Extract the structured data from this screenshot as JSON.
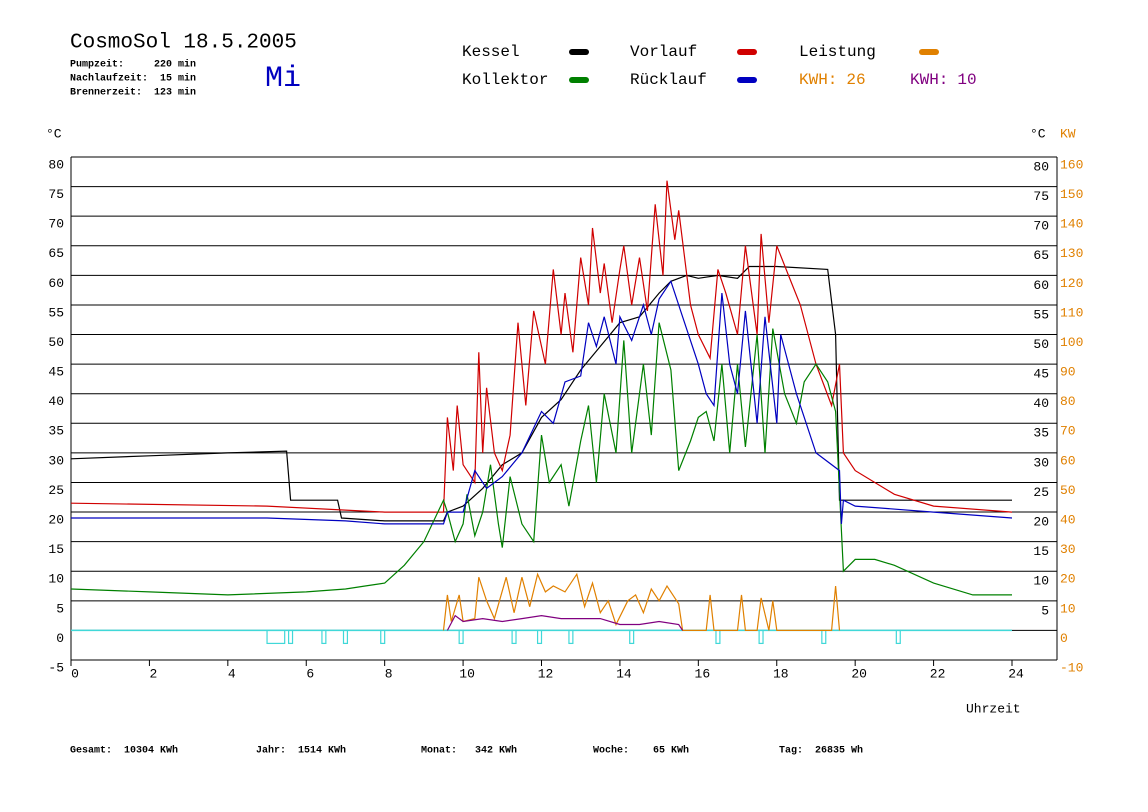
{
  "chart_data": {
    "type": "line",
    "title": "CosmoSol 18.5.2005",
    "info": [
      "Pumpzeit:     220 min",
      "Nachlaufzeit:  15 min",
      "Brennerzeit:  123 min"
    ],
    "day": "Mi",
    "y_label": "°C",
    "y2_label": "KW",
    "y_right_label": "°C",
    "x_label": "Uhrzeit",
    "xlim": [
      0,
      24
    ],
    "xticks": [
      0,
      2,
      4,
      6,
      8,
      10,
      12,
      14,
      16,
      18,
      20,
      22,
      24
    ],
    "ylim": [
      -5,
      80
    ],
    "yticks": [
      -5,
      0,
      5,
      10,
      15,
      20,
      25,
      30,
      35,
      40,
      45,
      50,
      55,
      60,
      65,
      70,
      75,
      80
    ],
    "yticks_right": [
      5,
      10,
      15,
      20,
      25,
      30,
      35,
      40,
      45,
      50,
      55,
      60,
      65,
      70,
      75,
      80
    ],
    "y2lim": [
      -10,
      160
    ],
    "y2ticks": [
      -10,
      0,
      10,
      20,
      30,
      40,
      50,
      60,
      70,
      80,
      90,
      100,
      110,
      120,
      130,
      140,
      150,
      160
    ],
    "y2color": "#e08000",
    "grid": true,
    "series": [
      {
        "name": "Kessel",
        "color": "#000000",
        "x": [
          0,
          2,
          4,
          5.5,
          5.6,
          6.8,
          6.9,
          8,
          9.5,
          9.6,
          10,
          10.5,
          11,
          11.5,
          12,
          12.5,
          13,
          13.5,
          14,
          14.5,
          15,
          15.3,
          15.7,
          16,
          16.5,
          17,
          17.3,
          18,
          19.3,
          19.5,
          19.6,
          24
        ],
        "values": [
          29,
          29.5,
          30,
          30.3,
          22,
          22,
          19,
          18.5,
          18.5,
          20,
          21,
          24,
          28,
          30,
          36,
          39,
          44,
          48,
          52,
          53,
          57,
          59,
          60,
          59.5,
          60,
          59.5,
          61.5,
          61.5,
          61,
          50,
          22,
          22
        ]
      },
      {
        "name": "Vorlauf",
        "color": "#d00000",
        "x": [
          0,
          5,
          8,
          9.5,
          9.6,
          9.75,
          9.85,
          10,
          10.3,
          10.4,
          10.5,
          10.6,
          10.8,
          11,
          11.2,
          11.4,
          11.6,
          11.8,
          12,
          12.1,
          12.3,
          12.5,
          12.6,
          12.8,
          13,
          13.2,
          13.3,
          13.5,
          13.6,
          13.8,
          14,
          14.1,
          14.3,
          14.5,
          14.7,
          14.9,
          15.1,
          15.2,
          15.4,
          15.5,
          15.8,
          16,
          16.3,
          16.5,
          16.7,
          17,
          17.2,
          17.5,
          17.6,
          17.8,
          18,
          18.3,
          18.6,
          19,
          19.4,
          19.6,
          19.7,
          20,
          21,
          22,
          24
        ],
        "values": [
          21.5,
          21,
          20,
          20,
          36,
          27,
          38,
          28,
          25,
          47,
          30,
          41,
          30,
          27,
          33,
          52,
          38,
          54,
          48,
          45,
          61,
          50,
          57,
          47,
          63,
          55,
          68,
          57,
          62,
          52,
          61,
          65,
          55,
          63,
          54,
          72,
          60,
          76,
          66,
          71,
          55,
          50,
          46,
          61,
          57,
          50,
          65,
          50,
          67,
          52,
          65,
          60,
          55,
          45,
          38,
          45,
          30,
          27,
          23,
          21,
          20
        ]
      },
      {
        "name": "Leistung",
        "color": "#e08000",
        "axis": "y2",
        "x": [
          9.5,
          9.6,
          9.7,
          9.9,
          10,
          10.3,
          10.4,
          10.6,
          10.8,
          11.1,
          11.3,
          11.5,
          11.7,
          11.9,
          12.1,
          12.3,
          12.6,
          12.9,
          13.1,
          13.3,
          13.5,
          13.7,
          13.9,
          14.2,
          14.4,
          14.6,
          14.8,
          15,
          15.2,
          15.5,
          15.6,
          16.2,
          16.3,
          16.4,
          17,
          17.1,
          17.2,
          17.5,
          17.6,
          17.8,
          17.9,
          18,
          19.4,
          19.5,
          19.6
        ],
        "values": [
          0,
          12,
          3,
          12,
          3,
          4,
          18,
          10,
          4,
          18,
          6,
          18,
          8,
          19,
          13,
          15,
          13,
          19,
          8,
          16,
          6,
          10,
          2,
          10,
          12,
          6,
          14,
          10,
          15,
          9,
          0,
          0,
          12,
          0,
          0,
          12,
          0,
          0,
          11,
          0,
          10,
          0,
          0,
          15,
          0
        ]
      },
      {
        "name": "Kollektor",
        "color": "#008000",
        "x": [
          0,
          2,
          4,
          6,
          7,
          7.5,
          8,
          8.5,
          9,
          9.5,
          9.6,
          9.8,
          10,
          10.1,
          10.3,
          10.5,
          10.7,
          10.9,
          11,
          11.2,
          11.5,
          11.8,
          12,
          12.2,
          12.5,
          12.7,
          13,
          13.2,
          13.4,
          13.6,
          13.9,
          14.1,
          14.3,
          14.6,
          14.8,
          15,
          15.3,
          15.5,
          15.8,
          16,
          16.2,
          16.4,
          16.6,
          16.8,
          17,
          17.2,
          17.5,
          17.7,
          17.9,
          18.2,
          18.5,
          18.7,
          19,
          19.3,
          19.5,
          19.7,
          20,
          20.5,
          21,
          22,
          23,
          24
        ],
        "values": [
          7,
          6.5,
          6,
          6.5,
          7,
          7.5,
          8,
          11,
          15,
          22,
          20,
          15,
          18,
          23,
          16,
          20,
          28,
          18,
          14,
          26,
          18,
          15,
          33,
          25,
          28,
          21,
          32,
          38,
          25,
          40,
          30,
          49,
          30,
          45,
          33,
          52,
          44,
          27,
          32,
          36,
          37,
          32,
          45,
          30,
          45,
          31,
          50,
          30,
          51,
          40,
          35,
          42,
          45,
          42,
          37,
          10,
          12,
          12,
          11,
          8,
          6,
          6
        ]
      },
      {
        "name": "Rücklauf",
        "color": "#0000c0",
        "x": [
          0,
          5,
          7,
          8,
          9.5,
          9.6,
          10,
          10.3,
          10.6,
          11,
          11.5,
          12,
          12.3,
          12.6,
          13,
          13.2,
          13.4,
          13.6,
          13.9,
          14,
          14.3,
          14.6,
          14.8,
          15,
          15.3,
          15.6,
          16,
          16.2,
          16.4,
          16.6,
          16.8,
          17,
          17.2,
          17.5,
          17.7,
          18,
          18.1,
          18.5,
          19,
          19.6,
          19.65,
          19.7,
          20,
          22,
          24
        ],
        "values": [
          19,
          19,
          18.5,
          18,
          18,
          20,
          20,
          27,
          24,
          26,
          30,
          37,
          35,
          42,
          43,
          52,
          48,
          53,
          45,
          53,
          49,
          55,
          50,
          56,
          59,
          53,
          45,
          40,
          38,
          57,
          45,
          40,
          54,
          35,
          53,
          35,
          50,
          40,
          30,
          27,
          18,
          22,
          21,
          20,
          19
        ]
      },
      {
        "color": "#800080",
        "axis": "y2",
        "x": [
          9.6,
          9.8,
          10,
          10.5,
          11,
          11.5,
          12,
          12.5,
          13,
          13.5,
          14,
          14.5,
          15,
          15.5,
          15.6
        ],
        "values": [
          0,
          5,
          3,
          4,
          3,
          4,
          5,
          4,
          4,
          4,
          2,
          2,
          3,
          2,
          0
        ]
      }
    ],
    "kwh": [
      {
        "label": "KWH:",
        "value": 26,
        "color": "#e08000"
      },
      {
        "label": "KWH:",
        "value": 10,
        "color": "#800080"
      }
    ],
    "pump": {
      "color": "#40d8d8",
      "intervals": [
        [
          5,
          5.45
        ],
        [
          5.55,
          5.65
        ],
        [
          6.4,
          6.5
        ],
        [
          6.95,
          7.05
        ],
        [
          7.9,
          8
        ],
        [
          9.9,
          10
        ],
        [
          11.25,
          11.35
        ],
        [
          11.9,
          12
        ],
        [
          12.7,
          12.8
        ],
        [
          14.25,
          14.35
        ],
        [
          16.45,
          16.55
        ],
        [
          17.55,
          17.65
        ],
        [
          19.15,
          19.25
        ],
        [
          21.05,
          21.15
        ]
      ]
    },
    "footer": [
      "Gesamt:  10304 KWh",
      "Jahr:  1514 KWh",
      "Monat:   342 KWh",
      "Woche:    65 KWh",
      "Tag:  26835 Wh"
    ]
  }
}
